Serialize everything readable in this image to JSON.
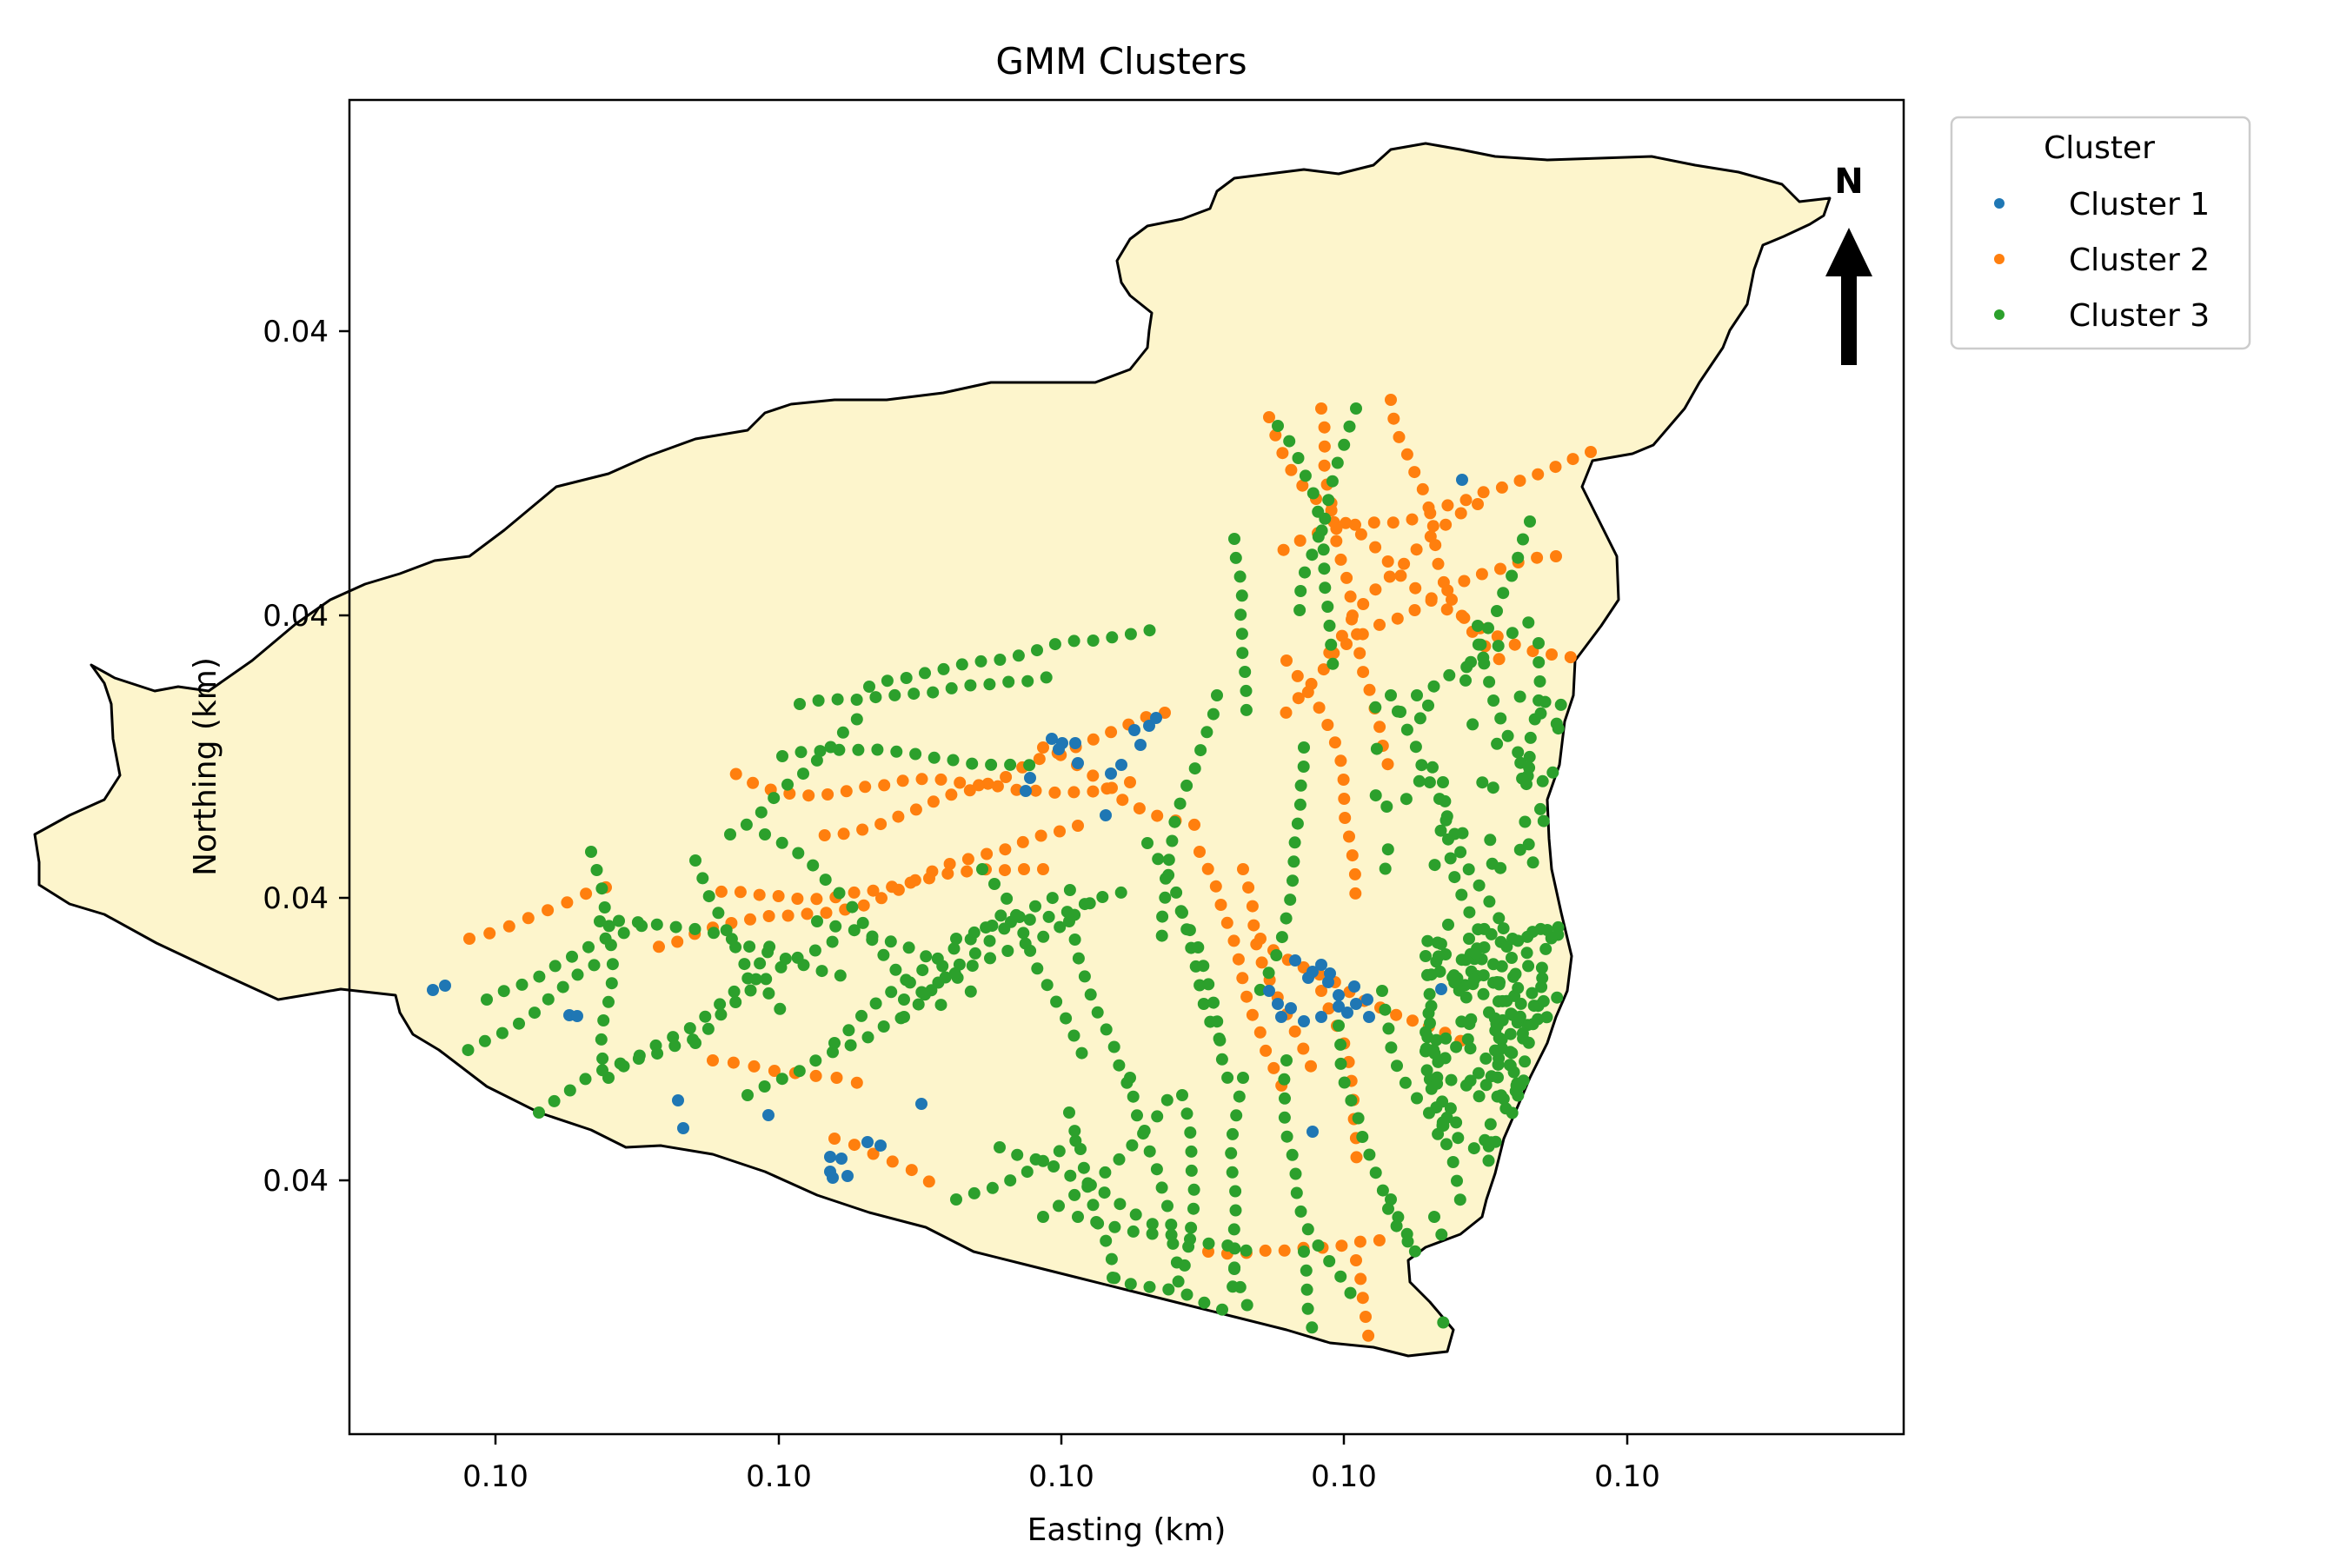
{
  "chart_data": {
    "type": "scatter",
    "title": "GMM Clusters",
    "xlabel": "Easting (km)",
    "ylabel": "Northing (km)",
    "x_tick_labels": [
      "0.10",
      "0.10",
      "0.10",
      "0.10",
      "0.10"
    ],
    "y_tick_labels": [
      "0.04",
      "0.04",
      "0.04",
      "0.04"
    ],
    "grid": false,
    "legend": {
      "title": "Cluster",
      "placement": "outside-top-right",
      "entries": [
        "Cluster 1",
        "Cluster 2",
        "Cluster 3"
      ]
    },
    "series": [
      {
        "name": "Cluster 1",
        "color": "#1f77b4"
      },
      {
        "name": "Cluster 2",
        "color": "#ff7f0e"
      },
      {
        "name": "Cluster 3",
        "color": "#2ca02c"
      }
    ],
    "basin_fill": "#fdf5cc",
    "north_arrow_label": "N"
  }
}
